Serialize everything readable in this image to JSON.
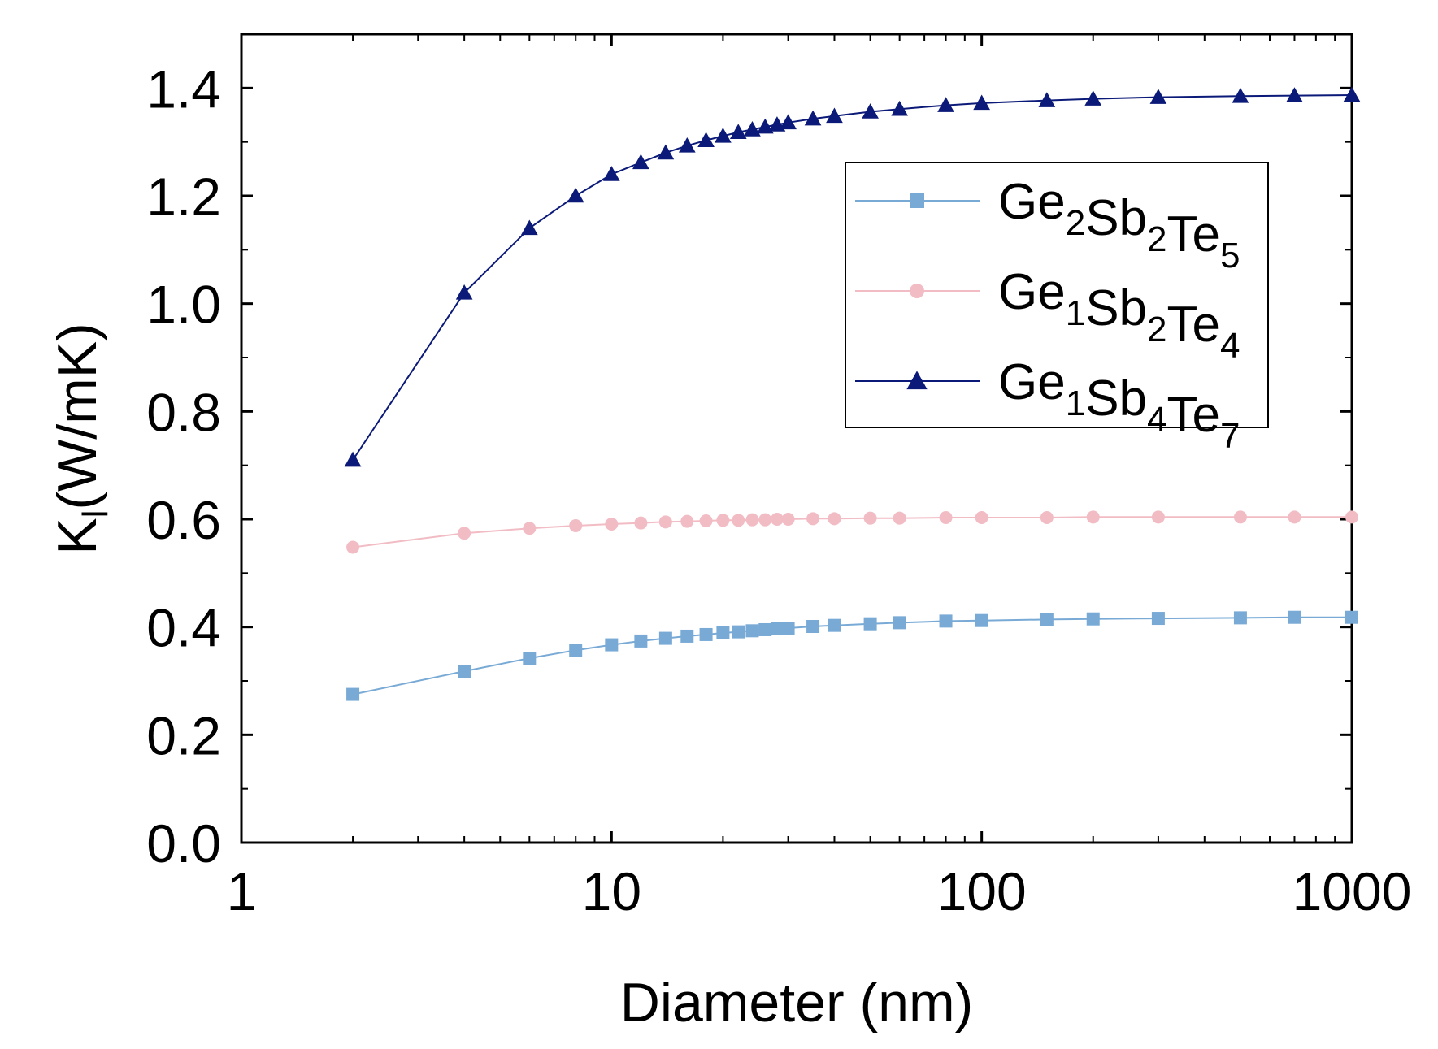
{
  "chart_data": {
    "type": "line",
    "title": "",
    "xlabel": "Diameter (nm)",
    "ylabel": {
      "main": "K",
      "sub": "l",
      "unit": "(W/mK)"
    },
    "x_scale": "log",
    "xlim": [
      1,
      1000
    ],
    "ylim": [
      0,
      1.5
    ],
    "x_ticks": [
      1,
      10,
      100,
      1000
    ],
    "x_tick_labels": [
      "1",
      "10",
      "100",
      "1000"
    ],
    "y_ticks": [
      0,
      0.2,
      0.4,
      0.6,
      0.8,
      1.0,
      1.2,
      1.4
    ],
    "y_tick_labels": [
      "0.0",
      "0.2",
      "0.4",
      "0.6",
      "0.8",
      "1.0",
      "1.2",
      "1.4"
    ],
    "grid": false,
    "legend_position": "top-right",
    "series": [
      {
        "name": "Ge2Sb2Te5",
        "legend_parts": [
          [
            "Ge",
            "2"
          ],
          [
            "Sb",
            "2"
          ],
          [
            "Te",
            "5"
          ]
        ],
        "marker": "square",
        "color": "#79aad6",
        "x": [
          2,
          4,
          6,
          8,
          10,
          12,
          14,
          16,
          18,
          20,
          22,
          24,
          26,
          28,
          30,
          35,
          40,
          50,
          60,
          80,
          100,
          150,
          200,
          300,
          500,
          700,
          1000
        ],
        "y": [
          0.275,
          0.318,
          0.342,
          0.357,
          0.367,
          0.374,
          0.379,
          0.383,
          0.386,
          0.389,
          0.391,
          0.393,
          0.395,
          0.397,
          0.398,
          0.401,
          0.403,
          0.406,
          0.408,
          0.411,
          0.412,
          0.414,
          0.415,
          0.416,
          0.417,
          0.418,
          0.418
        ]
      },
      {
        "name": "Ge1Sb2Te4",
        "legend_parts": [
          [
            "Ge",
            "1"
          ],
          [
            "Sb",
            "2"
          ],
          [
            "Te",
            "4"
          ]
        ],
        "marker": "circle",
        "color": "#f2bcc4",
        "x": [
          2,
          4,
          6,
          8,
          10,
          12,
          14,
          16,
          18,
          20,
          22,
          24,
          26,
          28,
          30,
          35,
          40,
          50,
          60,
          80,
          100,
          150,
          200,
          300,
          500,
          700,
          1000
        ],
        "y": [
          0.548,
          0.574,
          0.583,
          0.588,
          0.591,
          0.593,
          0.595,
          0.596,
          0.597,
          0.598,
          0.598,
          0.599,
          0.599,
          0.6,
          0.6,
          0.601,
          0.601,
          0.602,
          0.602,
          0.603,
          0.603,
          0.603,
          0.604,
          0.604,
          0.604,
          0.604,
          0.604
        ]
      },
      {
        "name": "Ge1Sb4Te7",
        "legend_parts": [
          [
            "Ge",
            "1"
          ],
          [
            "Sb",
            "4"
          ],
          [
            "Te",
            "7"
          ]
        ],
        "marker": "triangle",
        "color": "#0b1a78",
        "x": [
          2,
          4,
          6,
          8,
          10,
          12,
          14,
          16,
          18,
          20,
          22,
          24,
          26,
          28,
          30,
          35,
          40,
          50,
          60,
          80,
          100,
          150,
          200,
          300,
          500,
          700,
          1000
        ],
        "y": [
          0.71,
          1.02,
          1.14,
          1.2,
          1.24,
          1.262,
          1.28,
          1.293,
          1.303,
          1.311,
          1.318,
          1.323,
          1.328,
          1.332,
          1.336,
          1.343,
          1.348,
          1.356,
          1.361,
          1.368,
          1.372,
          1.377,
          1.38,
          1.383,
          1.385,
          1.386,
          1.387
        ]
      }
    ]
  }
}
